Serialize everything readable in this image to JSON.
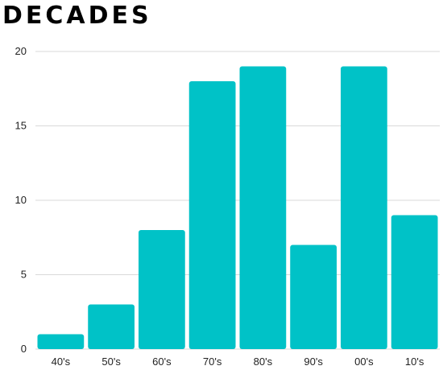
{
  "chart_data": {
    "type": "bar",
    "title": "DECADES",
    "categories": [
      "40's",
      "50's",
      "60's",
      "70's",
      "80's",
      "90's",
      "00's",
      "10's"
    ],
    "values": [
      1,
      3,
      8,
      18,
      19,
      7,
      19,
      9
    ],
    "xlabel": "",
    "ylabel": "",
    "ylim": [
      0,
      20
    ],
    "yticks": [
      "0",
      "5",
      "10",
      "15",
      "20"
    ],
    "grid": true,
    "legend": "none",
    "bar_color": "#00C2C7",
    "grid_color": "#d9d9d9"
  }
}
